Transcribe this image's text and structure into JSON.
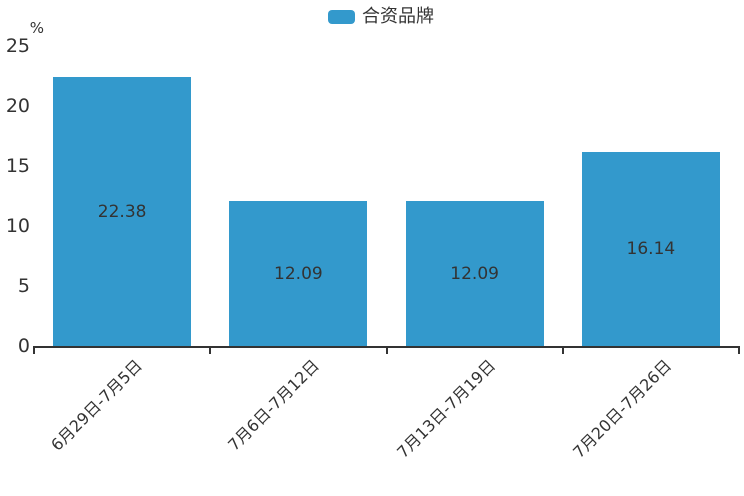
{
  "colors": {
    "bar": "#3399CC",
    "text": "#333333",
    "axis": "#333333",
    "background": "#FFFFFF"
  },
  "chart_data": {
    "type": "bar",
    "title": "",
    "ylabel": "%",
    "xlabel": "",
    "legend": [
      "合资品牌"
    ],
    "legend_position": "top-center",
    "categories": [
      "6月29日-7月5日",
      "7月6日-7月12日",
      "7月13日-7月19日",
      "7月20日-7月26日"
    ],
    "series": [
      {
        "name": "合资品牌",
        "values": [
          22.38,
          12.09,
          12.09,
          16.14
        ]
      }
    ],
    "value_labels": [
      "22.38",
      "12.09",
      "12.09",
      "16.14"
    ],
    "value_label_position": "inside-center",
    "yticks": [
      0,
      5,
      10,
      15,
      20,
      25
    ],
    "ylim": [
      0,
      25
    ],
    "grid": false,
    "x_label_rotation_deg": 45
  }
}
